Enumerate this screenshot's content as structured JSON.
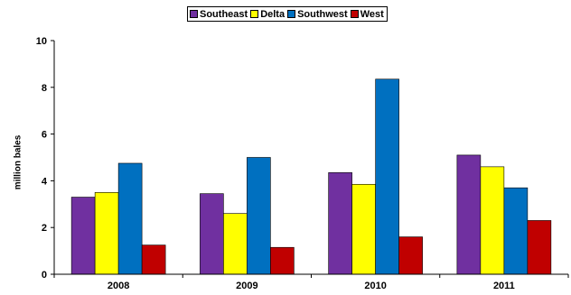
{
  "chart_data": {
    "type": "bar",
    "categories": [
      "2008",
      "2009",
      "2010",
      "2011"
    ],
    "series": [
      {
        "name": "Southeast",
        "color": "#7030A0",
        "values": [
          3.3,
          3.45,
          4.35,
          5.1
        ]
      },
      {
        "name": "Delta",
        "color": "#FFFF00",
        "values": [
          3.5,
          2.6,
          3.85,
          4.6
        ]
      },
      {
        "name": "Southwest",
        "color": "#0070C0",
        "values": [
          4.75,
          5.0,
          8.35,
          3.7
        ]
      },
      {
        "name": "West",
        "color": "#C00000",
        "values": [
          1.25,
          1.15,
          1.6,
          2.3
        ]
      }
    ],
    "ylabel": "million bales",
    "xlabel": "",
    "ylim": [
      0,
      10
    ],
    "yticks": [
      0,
      2,
      4,
      6,
      8,
      10
    ],
    "legend_position": "top-center",
    "grid": false
  }
}
